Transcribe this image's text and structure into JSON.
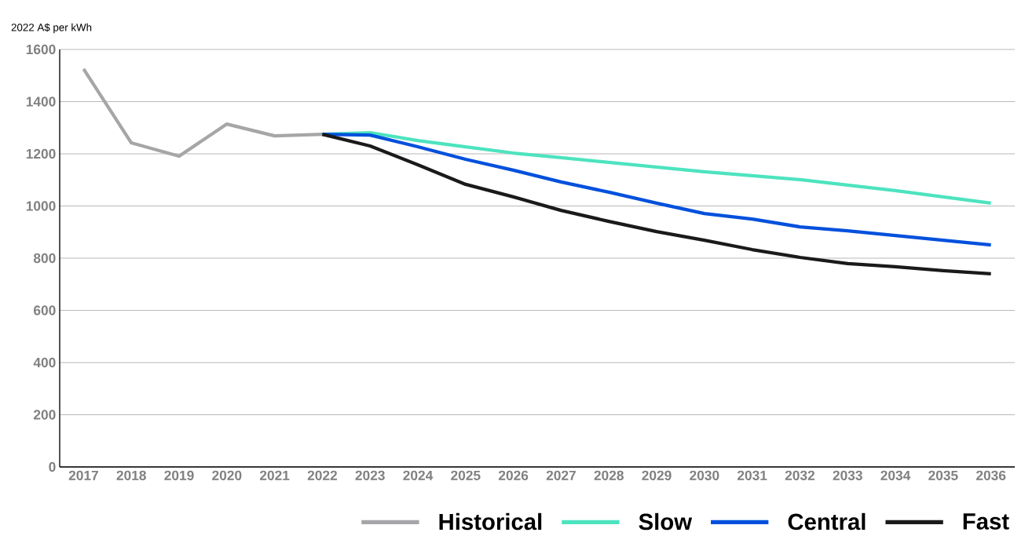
{
  "chart_data": {
    "type": "line",
    "ylabel": "2022 A$ per kWh",
    "categories": [
      "2017",
      "2018",
      "2019",
      "2020",
      "2021",
      "2022",
      "2023",
      "2024",
      "2025",
      "2026",
      "2027",
      "2028",
      "2029",
      "2030",
      "2031",
      "2032",
      "2033",
      "2034",
      "2035",
      "2036"
    ],
    "series": [
      {
        "name": "Historical",
        "color": "#a6a6a8",
        "values": [
          1525,
          1242,
          1191,
          1314,
          1269,
          1275,
          null,
          null,
          null,
          null,
          null,
          null,
          null,
          null,
          null,
          null,
          null,
          null,
          null,
          null
        ]
      },
      {
        "name": "Slow",
        "color": "#4de3bf",
        "values": [
          null,
          null,
          null,
          null,
          null,
          1275,
          1281,
          1251,
          1227,
          1203,
          1185,
          1167,
          1149,
          1131,
          1116,
          1101,
          1080,
          1059,
          1035,
          1011
        ]
      },
      {
        "name": "Central",
        "color": "#0050dc",
        "values": [
          null,
          null,
          null,
          null,
          null,
          1275,
          1272,
          1227,
          1179,
          1137,
          1092,
          1053,
          1011,
          971,
          950,
          920,
          905,
          887,
          869,
          851
        ]
      },
      {
        "name": "Fast",
        "color": "#1a1a1a",
        "values": [
          null,
          null,
          null,
          null,
          null,
          1275,
          1230,
          1158,
          1083,
          1035,
          983,
          941,
          902,
          869,
          833,
          803,
          779,
          767,
          752,
          740
        ]
      }
    ],
    "ylim": [
      0,
      1600
    ],
    "yticks": [
      0,
      200,
      400,
      600,
      800,
      1000,
      1200,
      1400,
      1600
    ],
    "grid": "y",
    "legend": "bottom",
    "marker": "none",
    "line_style": "solid"
  }
}
